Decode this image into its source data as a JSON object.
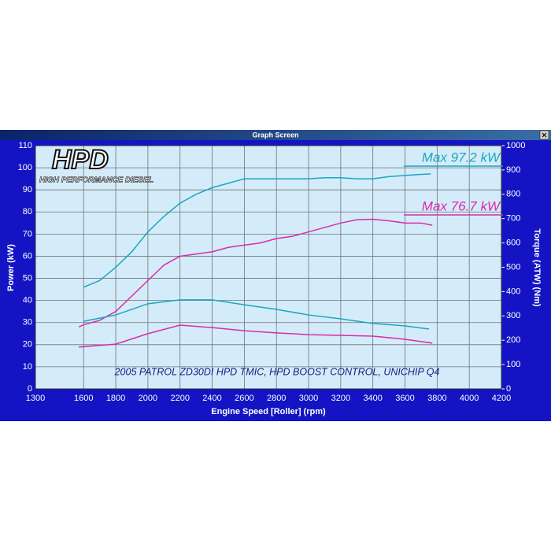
{
  "window_title": "Graph Screen",
  "chart_data": {
    "type": "line",
    "logo": "HPD",
    "logo_subtitle": "HIGH PERFORMANCE DIESEL",
    "annotation": "2005 PATROL ZD30DI HPD TMIC, HPD BOOST CONTROL, UNICHIP Q4",
    "max_labels": [
      {
        "text": "Max 97.2 kW",
        "color": "#1aa6c0"
      },
      {
        "text": "Max 76.7 kW",
        "color": "#d62ca8"
      }
    ],
    "x_label": "Engine Speed [Roller] (rpm)",
    "y_label": "Power (kW)",
    "y2_label": "Torque (ATW) (Nm)",
    "xlim": [
      1300,
      4200
    ],
    "xticks": [
      1300,
      1600,
      1800,
      2000,
      2200,
      2400,
      2600,
      2800,
      3000,
      3200,
      3400,
      3600,
      3800,
      4000,
      4200
    ],
    "ylim": [
      0,
      110
    ],
    "yticks": [
      0,
      10,
      20,
      30,
      40,
      50,
      60,
      70,
      80,
      90,
      100,
      110
    ],
    "y2lim": [
      0,
      1000
    ],
    "y2ticks": [
      0,
      100,
      200,
      300,
      400,
      500,
      600,
      700,
      800,
      900,
      1000
    ],
    "grid": true,
    "series": [
      {
        "color": "#1aa6c0",
        "x": [
          1600,
          1700,
          1800,
          1900,
          2000,
          2100,
          2200,
          2300,
          2400,
          2500,
          2600,
          2700,
          2800,
          2900,
          3000,
          3100,
          3200,
          3300,
          3400,
          3500,
          3600,
          3700,
          3760
        ],
        "values": [
          46,
          49,
          55,
          62,
          71,
          78,
          84,
          88,
          91,
          93,
          95,
          95,
          95,
          95,
          95,
          95.5,
          95.5,
          95,
          95,
          96,
          96.5,
          97,
          97.2
        ]
      },
      {
        "color": "#d62ca8",
        "x": [
          1570,
          1600,
          1700,
          1800,
          1900,
          2000,
          2100,
          2200,
          2300,
          2400,
          2500,
          2600,
          2700,
          2800,
          2900,
          3000,
          3100,
          3200,
          3300,
          3400,
          3500,
          3600,
          3700,
          3770
        ],
        "values": [
          28,
          29,
          31,
          35,
          42,
          49,
          56,
          60,
          61,
          62,
          64,
          65,
          66,
          68,
          69,
          71,
          73,
          75,
          76.5,
          76.7,
          76,
          75,
          75,
          74
        ]
      },
      {
        "color": "#1aa6c0",
        "axis": "y2",
        "x": [
          1600,
          1800,
          2000,
          2200,
          2400,
          2600,
          2800,
          3000,
          3200,
          3400,
          3600,
          3750
        ],
        "values": [
          278,
          304,
          350,
          366,
          366,
          346,
          327,
          304,
          288,
          269,
          259,
          246
        ]
      },
      {
        "color": "#d62ca8",
        "axis": "y2",
        "x": [
          1570,
          1800,
          2000,
          2200,
          2400,
          2600,
          2800,
          3000,
          3200,
          3400,
          3600,
          3770
        ],
        "values": [
          172,
          184,
          227,
          262,
          252,
          239,
          230,
          223,
          220,
          217,
          204,
          188
        ]
      }
    ]
  }
}
